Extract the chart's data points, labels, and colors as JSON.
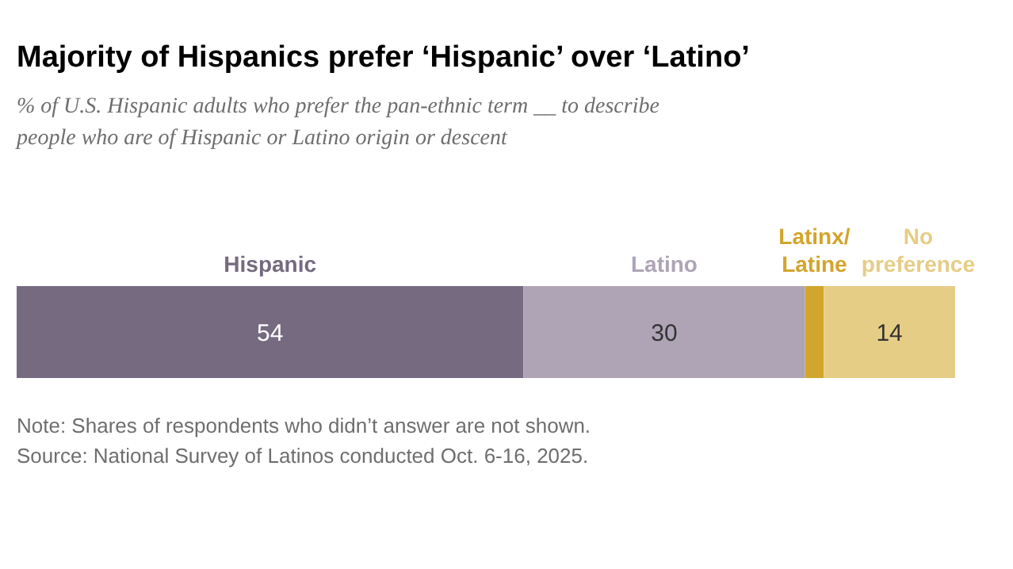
{
  "chart_data": {
    "type": "bar",
    "orientation": "horizontal",
    "stacked": true,
    "title": "Majority of Hispanics prefer ‘Hispanic’ over ‘Latino’",
    "subtitle": "% of U.S. Hispanic adults who prefer the pan-ethnic term __ to describe people who are of Hispanic or Latino origin or descent",
    "categories": [
      null
    ],
    "series": [
      {
        "name": "Hispanic",
        "color": "#756a80",
        "values": [
          54
        ],
        "value_labels": [
          "54"
        ]
      },
      {
        "name": "Latino",
        "color": "#aea4b6",
        "values": [
          30
        ],
        "value_labels": [
          "30"
        ]
      },
      {
        "name": "Latinx/Latine",
        "color": "#d2a52c",
        "values": [
          2
        ],
        "value_labels": [
          null
        ]
      },
      {
        "name": "No preference",
        "color": "#e6cd86",
        "values": [
          14
        ],
        "value_labels": [
          "14"
        ]
      }
    ],
    "annotations": [
      "Note: Shares of respondents who didn’t answer are not shown.",
      "Source: National Survey of Latinos conducted Oct. 6-16, 2025."
    ],
    "legend": false,
    "grid": false
  }
}
